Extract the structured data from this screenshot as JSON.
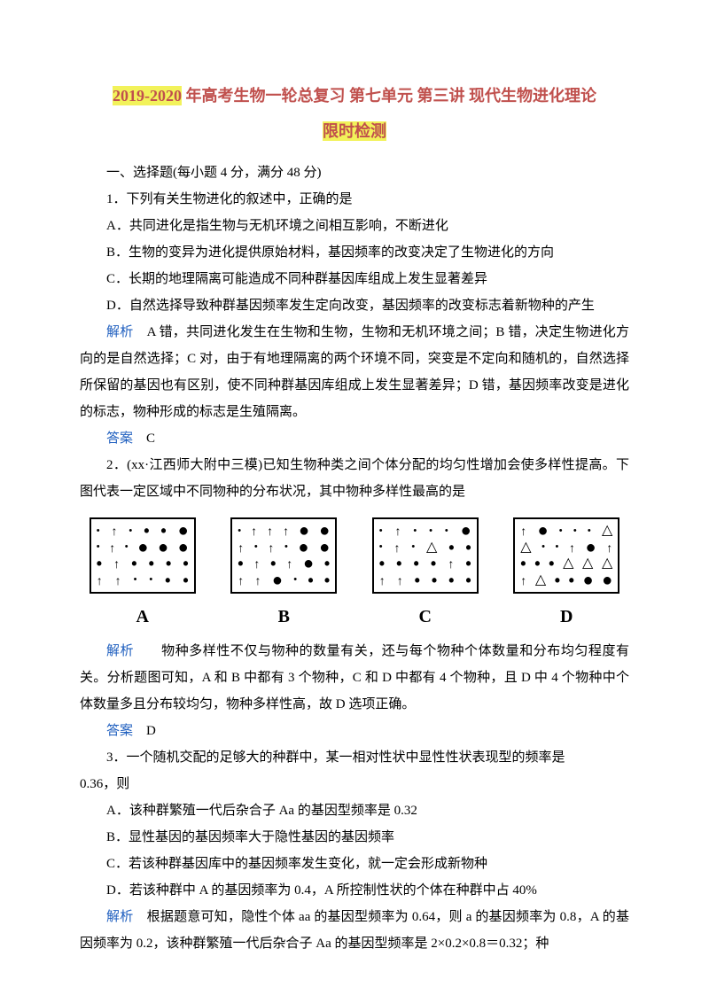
{
  "colors": {
    "highlight_bg": "#f2f25a",
    "title_color": "#c0504d",
    "link_color": "#1f5fbf",
    "text_color": "#000000",
    "bg_color": "#ffffff"
  },
  "title": {
    "line1_highlight": "2019-2020",
    "line1_rest": " 年高考生物一轮总复习 第七单元 第三讲 现代生物进化理论",
    "line2": "限时检测"
  },
  "section": {
    "heading": "一、选择题(每小题 4 分，满分 48 分)"
  },
  "q1": {
    "stem": "1．下列有关生物进化的叙述中，正确的是",
    "optA": "A．共同进化是指生物与无机环境之间相互影响，不断进化",
    "optB": "B．生物的变异为进化提供原始材料，基因频率的改变决定了生物进化的方向",
    "optC": "C．长期的地理隔离可能造成不同种群基因库组成上发生显著差异",
    "optD": "D．自然选择导致种群基因频率发生定向改变，基因频率的改变标志着新物种的产生",
    "expl_label": "解析",
    "expl_body": "　A 错，共同进化发生在生物和生物，生物和无机环境之间；B 错，决定生物进化方向的是自然选择；C 对，由于有地理隔离的两个环境不同，突变是不定向和随机的，自然选择所保留的基因也有区别，使不同种群基因库组成上发生显著差异；D 错，基因频率改变是进化的标志，物种形成的标志是生殖隔离。",
    "ans_label": "答案",
    "ans_body": "　C"
  },
  "q2": {
    "stem": "2．(xx·江西师大附中三模)已知生物种类之间个体分配的均匀性增加会使多样性提高。下图代表一定区域中不同物种的分布状况，其中物种多样性最高的是",
    "labels": {
      "A": "A",
      "B": "B",
      "C": "C",
      "D": "D"
    },
    "expl_label": "解析",
    "expl_body": "　　物种多样性不仅与物种的数量有关，还与每个物种个体数量和分布均匀程度有关。分析题图可知，A 和 B 中都有 3 个物种，C 和 D 中都有 4 个物种，且 D 中 4 个物种中个体数量多且分布较均匀，物种多样性高，故 D 选项正确。",
    "ans_label": "答案",
    "ans_body": "　D"
  },
  "q3": {
    "stem_l1": "3．一个随机交配的足够大的种群中，某一相对性状中显性性状表现型的频率是",
    "stem_l2": "0.36，则",
    "optA": "A．该种群繁殖一代后杂合子 Aa 的基因型频率是 0.32",
    "optB": "B．显性基因的基因频率大于隐性基因的基因频率",
    "optC": "C．若该种群基因库中的基因频率发生变化，就一定会形成新物种",
    "optD": "D．若该种群中 A 的基因频率为 0.4，A 所控制性状的个体在种群中占 40%",
    "expl_label": "解析",
    "expl_body": "　根据题意可知，隐性个体 aa 的基因型频率为 0.64，则 a 的基因频率为 0.8，A 的基因频率为 0.2，该种群繁殖一代后杂合子 Aa 的基因型频率是 2×0.2×0.8＝0.32；种"
  }
}
